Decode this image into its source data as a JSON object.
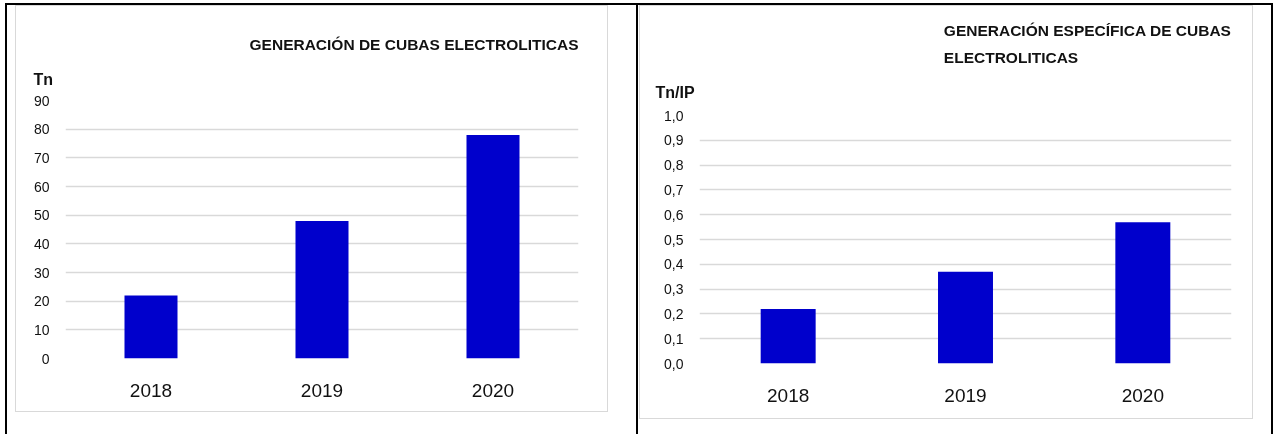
{
  "chart_data": [
    {
      "type": "bar",
      "title": "GENERACIÓN DE CUBAS ELECTROLITICAS",
      "ylabel": "Tn",
      "categories": [
        "2018",
        "2019",
        "2020"
      ],
      "values": [
        22,
        48,
        78
      ],
      "color": "#0000cc",
      "ylim": [
        0,
        90
      ],
      "yticks": [
        0,
        10,
        20,
        30,
        40,
        50,
        60,
        70,
        80,
        90
      ],
      "grid": "y"
    },
    {
      "type": "bar",
      "title": "GENERACIÓN ESPECÍFICA DE CUBAS ELECTROLITICAS",
      "ylabel": "Tn/IP",
      "categories": [
        "2018",
        "2019",
        "2020"
      ],
      "values": [
        0.22,
        0.37,
        0.57
      ],
      "color": "#0000cc",
      "ylim": [
        0,
        1.0
      ],
      "yticks": [
        {
          "value": 0,
          "label": "0,0"
        },
        {
          "value": 0.1,
          "label": "0,1"
        },
        {
          "value": 0.2,
          "label": "0,2"
        },
        {
          "value": 0.3,
          "label": "0,3"
        },
        {
          "value": 0.4,
          "label": "0,4"
        },
        {
          "value": 0.5,
          "label": "0,5"
        },
        {
          "value": 0.6,
          "label": "0,6"
        },
        {
          "value": 0.7,
          "label": "0,7"
        },
        {
          "value": 0.8,
          "label": "0,8"
        },
        {
          "value": 0.9,
          "label": "0,9"
        },
        {
          "value": 1.0,
          "label": "1,0"
        }
      ],
      "grid": "y"
    }
  ]
}
